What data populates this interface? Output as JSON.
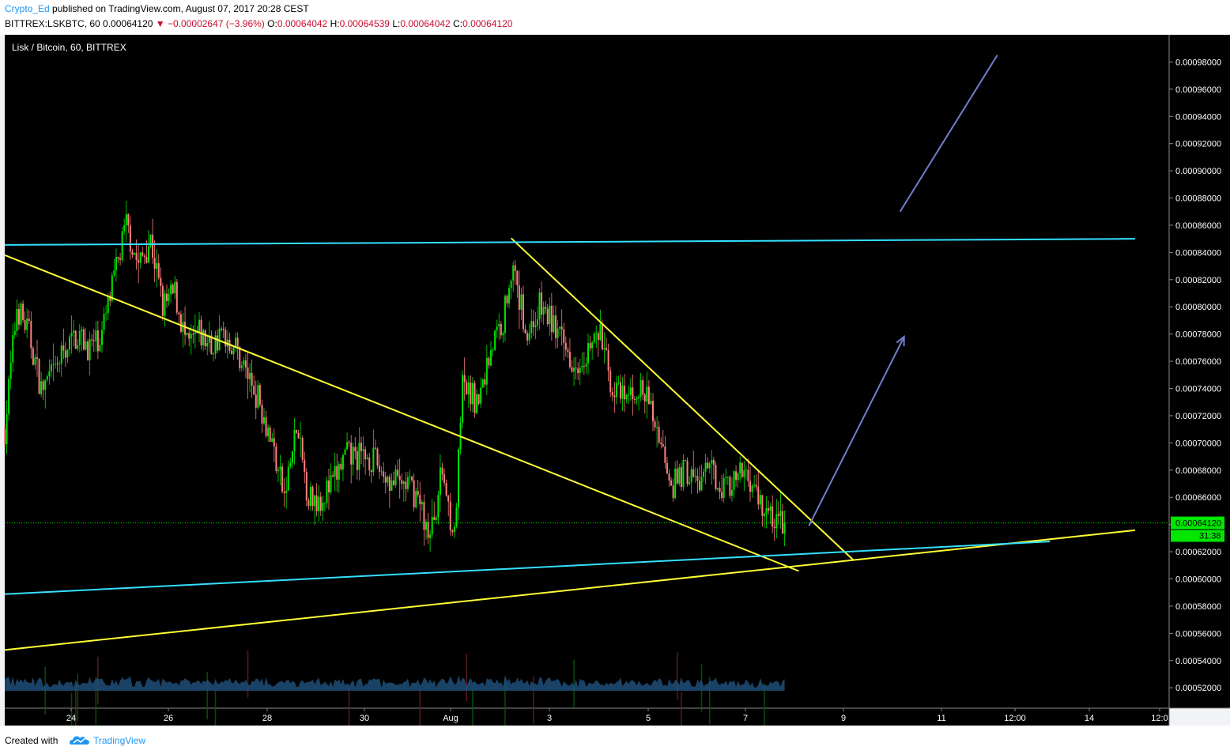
{
  "header": {
    "author": "Crypto_Ed",
    "published_text": "published on TradingView.com, August 07, 2017 20:28 CEST",
    "symbol": "BITTREX:LSKBTC, 60",
    "last": "0.00064120",
    "change": "−0.00002647 (−3.96%)",
    "o_label": "O:",
    "o_value": "0.00064042",
    "h_label": "H:",
    "h_value": "0.00064539",
    "l_label": "L:",
    "l_value": "0.00064042",
    "c_label": "C:",
    "c_value": "0.00064120"
  },
  "pane_title": "Lisk / Bitcoin, 60, BITTREX",
  "price_tag": "0.00064120",
  "countdown": "31:38",
  "footer": {
    "created": "Created with",
    "brand": "TradingView"
  },
  "colors": {
    "background": "#000000",
    "up": "#00e600",
    "down": "#ff7f7f",
    "trendline": "#ffff33",
    "level": "#33e0ff",
    "arrow": "#7080cc",
    "volume": "#1e4e78"
  },
  "chart_data": {
    "type": "candlestick",
    "title": "Lisk / Bitcoin, 60, BITTREX",
    "ylim": [
      0.000505,
      0.001
    ],
    "y_ticks": [
      "0.00052000",
      "0.00054000",
      "0.00056000",
      "0.00058000",
      "0.00060000",
      "0.00062000",
      "0.00064000",
      "0.00066000",
      "0.00068000",
      "0.00070000",
      "0.00072000",
      "0.00074000",
      "0.00076000",
      "0.00078000",
      "0.00080000",
      "0.00082000",
      "0.00084000",
      "0.00086000",
      "0.00088000",
      "0.00090000",
      "0.00092000",
      "0.00094000",
      "0.00096000",
      "0.00098000"
    ],
    "x_ticks": [
      "24",
      "26",
      "28",
      "30",
      "Aug",
      "3",
      "5",
      "7",
      "9",
      "11",
      "12:00",
      "14",
      "12:0"
    ],
    "last_price": 0.0006412,
    "price_path": [
      [
        "Jul 22 18:00",
        0.00071
      ],
      [
        "Jul 23 00:00",
        0.0008
      ],
      [
        "Jul 23 06:00",
        0.00078
      ],
      [
        "Jul 23 12:00",
        0.00074
      ],
      [
        "Jul 23 18:00",
        0.00075
      ],
      [
        "Jul 24 00:00",
        0.00077
      ],
      [
        "Jul 24 06:00",
        0.00078
      ],
      [
        "Jul 24 12:00",
        0.00077
      ],
      [
        "Jul 24 18:00",
        0.00078
      ],
      [
        "Jul 25 00:00",
        0.00082
      ],
      [
        "Jul 25 06:00",
        0.00086
      ],
      [
        "Jul 25 12:00",
        0.00083
      ],
      [
        "Jul 25 18:00",
        0.00085
      ],
      [
        "Jul 26 00:00",
        0.0008
      ],
      [
        "Jul 26 06:00",
        0.00081
      ],
      [
        "Jul 26 12:00",
        0.00077
      ],
      [
        "Jul 26 18:00",
        0.00078
      ],
      [
        "Jul 27 00:00",
        0.00077
      ],
      [
        "Jul 27 06:00",
        0.00078
      ],
      [
        "Jul 27 12:00",
        0.00077
      ],
      [
        "Jul 27 18:00",
        0.00075
      ],
      [
        "Jul 28 00:00",
        0.00073
      ],
      [
        "Jul 28 06:00",
        0.0007
      ],
      [
        "Jul 28 12:00",
        0.00066
      ],
      [
        "Jul 28 18:00",
        0.00071
      ],
      [
        "Jul 29 00:00",
        0.00066
      ],
      [
        "Jul 29 06:00",
        0.00066
      ],
      [
        "Jul 29 12:00",
        0.00067
      ],
      [
        "Jul 29 18:00",
        0.00069
      ],
      [
        "Jul 30 00:00",
        0.00069
      ],
      [
        "Jul 30 06:00",
        0.00069
      ],
      [
        "Jul 30 12:00",
        0.00068
      ],
      [
        "Jul 30 18:00",
        0.00067
      ],
      [
        "Jul 31 00:00",
        0.00067
      ],
      [
        "Jul 31 06:00",
        0.00066
      ],
      [
        "Jul 31 12:00",
        0.00063
      ],
      [
        "Jul 31 18:00",
        0.00068
      ],
      [
        "Aug 01 00:00",
        0.00063
      ],
      [
        "Aug 01 04:00",
        0.00074
      ],
      [
        "Aug 01 12:00",
        0.00073
      ],
      [
        "Aug 01 18:00",
        0.00077
      ],
      [
        "Aug 02 00:00",
        0.00079
      ],
      [
        "Aug 02 04:00",
        0.00083
      ],
      [
        "Aug 02 12:00",
        0.00078
      ],
      [
        "Aug 02 18:00",
        0.0008
      ],
      [
        "Aug 03 00:00",
        0.00079
      ],
      [
        "Aug 03 06:00",
        0.00077
      ],
      [
        "Aug 03 12:00",
        0.00076
      ],
      [
        "Aug 03 18:00",
        0.00077
      ],
      [
        "Aug 04 00:00",
        0.00078
      ],
      [
        "Aug 04 06:00",
        0.00074
      ],
      [
        "Aug 04 12:00",
        0.00073
      ],
      [
        "Aug 04 18:00",
        0.00074
      ],
      [
        "Aug 05 00:00",
        0.00073
      ],
      [
        "Aug 05 06:00",
        0.0007
      ],
      [
        "Aug 05 12:00",
        0.00067
      ],
      [
        "Aug 05 18:00",
        0.00068
      ],
      [
        "Aug 06 00:00",
        0.00067
      ],
      [
        "Aug 06 06:00",
        0.00068
      ],
      [
        "Aug 06 12:00",
        0.00067
      ],
      [
        "Aug 06 18:00",
        0.00067
      ],
      [
        "Aug 07 00:00",
        0.00068
      ],
      [
        "Aug 07 06:00",
        0.00066
      ],
      [
        "Aug 07 12:00",
        0.000645
      ],
      [
        "Aug 07 19:00",
        0.0006412
      ]
    ],
    "annotations": [
      {
        "type": "line",
        "color": "#ffff33",
        "from": [
          "Jul 22 18:00",
          0.000838
        ],
        "to": [
          "Aug 08 02:00",
          0.0006058
        ]
      },
      {
        "type": "line",
        "color": "#ffff33",
        "from": [
          "Aug 02 04:00",
          0.0008505
        ],
        "to": [
          "Aug 09 05:00",
          0.0006138
        ]
      },
      {
        "type": "line",
        "color": "#ffff33",
        "from": [
          "Jul 22 18:00",
          0.0005478
        ],
        "to": [
          "Aug 15 00:00",
          0.0006358
        ]
      },
      {
        "type": "line",
        "color": "#33e0ff",
        "from": [
          "Jul 22 18:00",
          0.0008455
        ],
        "to": [
          "Aug 15 00:00",
          0.00085
        ]
      },
      {
        "type": "line",
        "color": "#33e0ff",
        "from": [
          "Jul 22 18:00",
          0.0005888
        ],
        "to": [
          "Aug 13 06:00",
          0.0006275
        ]
      },
      {
        "type": "arrow",
        "color": "#7080cc",
        "from": [
          "Aug 08 07:00",
          0.000639
        ],
        "to": [
          "Aug 10 06:00",
          0.000778
        ]
      },
      {
        "type": "line",
        "color": "#7080cc",
        "from": [
          "Aug 10 04:00",
          0.00087
        ],
        "to": [
          "Aug 12 04:00",
          0.000985
        ]
      }
    ]
  }
}
